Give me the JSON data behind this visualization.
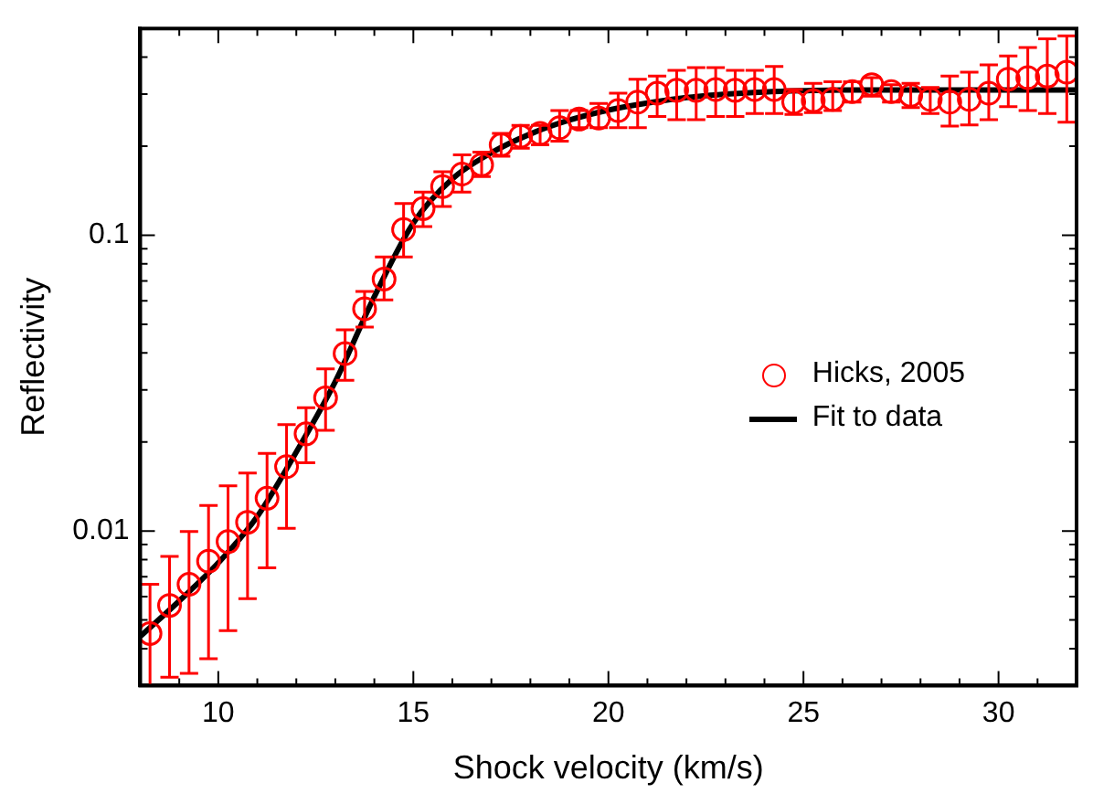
{
  "chart_data": {
    "type": "scatter",
    "xlabel": "Shock velocity (km/s)",
    "ylabel": "Reflectivity",
    "log": "y",
    "marker": "circle",
    "legend": "right",
    "xlim": [
      8,
      32
    ],
    "xticks": [
      {
        "value": 8,
        "label": null
      },
      {
        "value": 9,
        "label": null
      },
      10,
      {
        "value": 11,
        "label": null
      },
      {
        "value": 12,
        "label": null
      },
      {
        "value": 13,
        "label": null
      },
      {
        "value": 14,
        "label": null
      },
      15,
      {
        "value": 16,
        "label": null
      },
      {
        "value": 17,
        "label": null
      },
      {
        "value": 18,
        "label": null
      },
      {
        "value": 19,
        "label": null
      },
      20,
      {
        "value": 21,
        "label": null
      },
      {
        "value": 22,
        "label": null
      },
      {
        "value": 23,
        "label": null
      },
      {
        "value": 24,
        "label": null
      },
      25,
      {
        "value": 26,
        "label": null
      },
      {
        "value": 27,
        "label": null
      },
      {
        "value": 28,
        "label": null
      },
      {
        "value": 29,
        "label": null
      },
      30,
      {
        "value": 31,
        "label": null
      }
    ],
    "ylim": [
      0.003,
      0.5
    ],
    "yticks": [
      {
        "value": 0.003,
        "label": null
      },
      {
        "value": 0.004,
        "label": null
      },
      {
        "value": 0.005,
        "label": null
      },
      {
        "value": 0.006,
        "label": null
      },
      {
        "value": 0.007,
        "label": null
      },
      {
        "value": 0.008,
        "label": null
      },
      {
        "value": 0.009,
        "label": null
      },
      0.01,
      {
        "value": 0.02,
        "label": null
      },
      {
        "value": 0.03,
        "label": null
      },
      {
        "value": 0.04,
        "label": null
      },
      {
        "value": 0.05,
        "label": null
      },
      {
        "value": 0.06,
        "label": null
      },
      {
        "value": 0.07,
        "label": null
      },
      {
        "value": 0.08,
        "label": null
      },
      {
        "value": 0.09,
        "label": null
      },
      0.1,
      {
        "value": 0.2,
        "label": null
      },
      {
        "value": 0.3,
        "label": null
      },
      {
        "value": 0.4,
        "label": null
      }
    ],
    "series": [
      {
        "name": "Hicks, 2005",
        "color": "#ff0000",
        "x": [
          8.25,
          8.75,
          9.25,
          9.75,
          10.25,
          10.75,
          11.25,
          11.75,
          12.25,
          12.75,
          13.25,
          13.75,
          14.25,
          14.75,
          15.25,
          15.75,
          16.25,
          16.75,
          17.25,
          17.75,
          18.25,
          18.75,
          19.25,
          19.75,
          20.25,
          20.75,
          21.25,
          21.75,
          22.25,
          22.75,
          23.25,
          23.75,
          24.25,
          24.75,
          25.25,
          25.75,
          26.25,
          26.75,
          27.25,
          27.75,
          28.25,
          28.75,
          29.25,
          29.75,
          30.25,
          30.75,
          31.25,
          31.75
        ],
        "values": [
          0.0045,
          0.0056,
          0.0066,
          0.0079,
          0.0092,
          0.0107,
          0.0129,
          0.0165,
          0.0213,
          0.0282,
          0.0398,
          0.0564,
          0.0711,
          0.1045,
          0.123,
          0.146,
          0.161,
          0.173,
          0.202,
          0.216,
          0.221,
          0.231,
          0.247,
          0.249,
          0.264,
          0.282,
          0.302,
          0.309,
          0.309,
          0.311,
          0.309,
          0.311,
          0.311,
          0.282,
          0.285,
          0.288,
          0.306,
          0.323,
          0.306,
          0.297,
          0.288,
          0.282,
          0.288,
          0.302,
          0.337,
          0.341,
          0.345,
          0.356
        ],
        "errors": [
          [
            0.003,
            0.0066
          ],
          [
            0.0032,
            0.0082
          ],
          [
            0.0033,
            0.00995
          ],
          [
            0.0037,
            0.0122
          ],
          [
            0.0046,
            0.0142
          ],
          [
            0.0059,
            0.0157
          ],
          [
            0.0075,
            0.0183
          ],
          [
            0.0102,
            0.0229
          ],
          [
            0.017,
            0.0261
          ],
          [
            0.0219,
            0.0353
          ],
          [
            0.0323,
            0.0479
          ],
          [
            0.0489,
            0.0646
          ],
          [
            0.0604,
            0.0844
          ],
          [
            0.0844,
            0.128
          ],
          [
            0.107,
            0.14
          ],
          [
            0.125,
            0.164
          ],
          [
            0.14,
            0.187
          ],
          [
            0.158,
            0.191
          ],
          [
            0.185,
            0.221
          ],
          [
            0.197,
            0.235
          ],
          [
            0.202,
            0.235
          ],
          [
            0.208,
            0.264
          ],
          [
            0.231,
            0.264
          ],
          [
            0.231,
            0.279
          ],
          [
            0.231,
            0.302
          ],
          [
            0.231,
            0.337
          ],
          [
            0.252,
            0.345
          ],
          [
            0.246,
            0.361
          ],
          [
            0.246,
            0.369
          ],
          [
            0.252,
            0.369
          ],
          [
            0.252,
            0.361
          ],
          [
            0.258,
            0.361
          ],
          [
            0.258,
            0.372
          ],
          [
            0.256,
            0.311
          ],
          [
            0.26,
            0.326
          ],
          [
            0.264,
            0.33
          ],
          [
            0.282,
            0.33
          ],
          [
            0.295,
            0.341
          ],
          [
            0.282,
            0.323
          ],
          [
            0.27,
            0.326
          ],
          [
            0.258,
            0.316
          ],
          [
            0.234,
            0.345
          ],
          [
            0.236,
            0.356
          ],
          [
            0.246,
            0.377
          ],
          [
            0.272,
            0.404
          ],
          [
            0.264,
            0.431
          ],
          [
            0.258,
            0.461
          ],
          [
            0.241,
            0.472
          ]
        ]
      },
      {
        "name": "Fit to data",
        "type": "line",
        "color": "#000000",
        "line_style": "solid",
        "marker": "none",
        "x": [
          8,
          9,
          10,
          11,
          12,
          13,
          14,
          15,
          16,
          17,
          18,
          19,
          20,
          21,
          22,
          23,
          24,
          25,
          26,
          27,
          28,
          29,
          30,
          31,
          32
        ],
        "values": [
          0.0044,
          0.0058,
          0.0078,
          0.0112,
          0.0185,
          0.032,
          0.062,
          0.11,
          0.155,
          0.19,
          0.22,
          0.245,
          0.265,
          0.28,
          0.292,
          0.3,
          0.305,
          0.308,
          0.31,
          0.31,
          0.31,
          0.31,
          0.31,
          0.31,
          0.31
        ]
      }
    ]
  }
}
